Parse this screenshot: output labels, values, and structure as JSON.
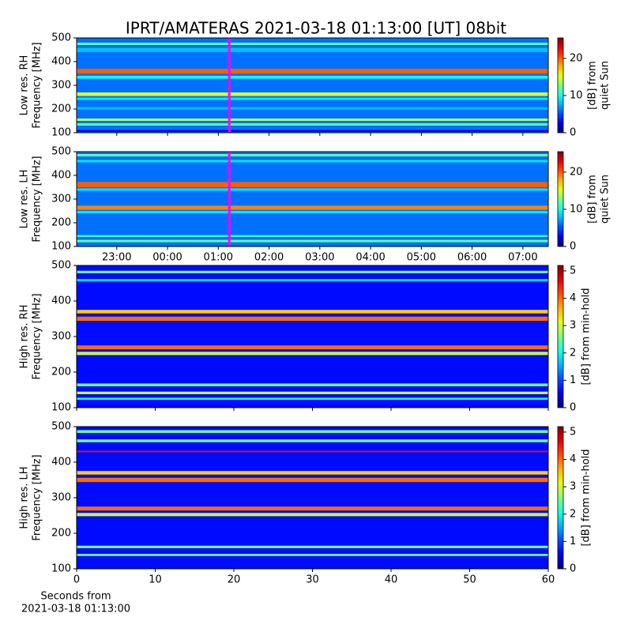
{
  "chart_data": [
    {
      "type": "heatmap",
      "title": "IPRT/AMATERAS 2021-03-18 01:13:00 [UT]   08bit",
      "ylabel": [
        "Low res. RH",
        "Frequency [MHz]"
      ],
      "ylim": [
        100,
        500
      ],
      "yticks": [
        100,
        200,
        300,
        400,
        500
      ],
      "xlim": [
        -1.79,
        7.5
      ],
      "markers": [
        {
          "x": 1.2167,
          "color": "#ff00ff"
        }
      ],
      "clim": [
        0,
        25.5
      ],
      "cticks": [
        0,
        10,
        20
      ],
      "clabel": [
        "[dB] from",
        "quiet Sun"
      ],
      "background": 6,
      "bands": [
        {
          "from": 470,
          "to": 480,
          "value": 12
        },
        {
          "from": 440,
          "to": 458,
          "value": 8
        },
        {
          "from": 350,
          "to": 370,
          "value": 20
        },
        {
          "from": 328,
          "to": 340,
          "value": 10
        },
        {
          "from": 255,
          "to": 270,
          "value": 15
        },
        {
          "from": 238,
          "to": 248,
          "value": 9
        },
        {
          "from": 198,
          "to": 208,
          "value": 8
        },
        {
          "from": 150,
          "to": 160,
          "value": 14
        },
        {
          "from": 130,
          "to": 140,
          "value": 12
        },
        {
          "from": 104,
          "to": 112,
          "value": 3
        }
      ]
    },
    {
      "type": "heatmap",
      "ylabel": [
        "Low res. LH",
        "Frequency [MHz]"
      ],
      "ylim": [
        100,
        500
      ],
      "yticks": [
        100,
        200,
        300,
        400,
        500
      ],
      "xlim": [
        -1.79,
        7.5
      ],
      "markers": [
        {
          "x": 1.2167,
          "color": "#ff00ff"
        }
      ],
      "xticks": [
        {
          "value": -1,
          "label": "23:00"
        },
        {
          "value": 0,
          "label": "00:00"
        },
        {
          "value": 1,
          "label": "01:00"
        },
        {
          "value": 2,
          "label": "02:00"
        },
        {
          "value": 3,
          "label": "03:00"
        },
        {
          "value": 4,
          "label": "04:00"
        },
        {
          "value": 5,
          "label": "05:00"
        },
        {
          "value": 6,
          "label": "06:00"
        },
        {
          "value": 7,
          "label": "07:00"
        }
      ],
      "clim": [
        0,
        25.5
      ],
      "cticks": [
        0,
        10,
        20
      ],
      "clabel": [
        "[dB] from",
        "quiet Sun"
      ],
      "background": 6,
      "bands": [
        {
          "from": 480,
          "to": 490,
          "value": 12
        },
        {
          "from": 455,
          "to": 465,
          "value": 9
        },
        {
          "from": 350,
          "to": 372,
          "value": 20
        },
        {
          "from": 335,
          "to": 345,
          "value": 9
        },
        {
          "from": 255,
          "to": 272,
          "value": 19
        },
        {
          "from": 240,
          "to": 250,
          "value": 9
        },
        {
          "from": 140,
          "to": 148,
          "value": 11
        },
        {
          "from": 118,
          "to": 128,
          "value": 12
        }
      ]
    },
    {
      "type": "heatmap",
      "ylabel": [
        "High res. RH",
        "Frequency [MHz]"
      ],
      "ylim": [
        100,
        500
      ],
      "yticks": [
        100,
        200,
        300,
        400,
        500
      ],
      "xlim": [
        0,
        60
      ],
      "clim": [
        0,
        5.2
      ],
      "cticks": [
        0,
        1,
        2,
        3,
        4,
        5
      ],
      "clabel": [
        "[dB] from min-hold"
      ],
      "background": 0.7,
      "bands": [
        {
          "from": 478,
          "to": 485,
          "value": 2.5
        },
        {
          "from": 455,
          "to": 462,
          "value": 1.8
        },
        {
          "from": 365,
          "to": 375,
          "value": 3.5
        },
        {
          "from": 344,
          "to": 356,
          "value": 4
        },
        {
          "from": 264,
          "to": 275,
          "value": 4
        },
        {
          "from": 248,
          "to": 257,
          "value": 3
        },
        {
          "from": 160,
          "to": 168,
          "value": 2.5
        },
        {
          "from": 138,
          "to": 145,
          "value": 3
        },
        {
          "from": 122,
          "to": 128,
          "value": 2
        }
      ]
    },
    {
      "type": "heatmap",
      "ylabel": [
        "High res. LH",
        "Frequency [MHz]"
      ],
      "ylim": [
        100,
        500
      ],
      "yticks": [
        100,
        200,
        300,
        400,
        500
      ],
      "xlim": [
        0,
        60
      ],
      "xticks": [
        0,
        10,
        20,
        30,
        40,
        50,
        60
      ],
      "xlabel": [
        "Seconds from",
        "2021-03-18 01:13:00"
      ],
      "clim": [
        0,
        5.2
      ],
      "cticks": [
        0,
        1,
        2,
        3,
        4,
        5
      ],
      "clabel": [
        "[dB] from min-hold"
      ],
      "background": 0.7,
      "bands": [
        {
          "from": 482,
          "to": 490,
          "value": 2.5
        },
        {
          "from": 456,
          "to": 464,
          "value": 2.5
        },
        {
          "from": 428,
          "to": 432,
          "value": 4.5
        },
        {
          "from": 365,
          "to": 375,
          "value": 3.5
        },
        {
          "from": 344,
          "to": 356,
          "value": 4
        },
        {
          "from": 264,
          "to": 275,
          "value": 4
        },
        {
          "from": 248,
          "to": 257,
          "value": 3
        },
        {
          "from": 158,
          "to": 165,
          "value": 2.5
        },
        {
          "from": 136,
          "to": 142,
          "value": 2.5
        }
      ]
    }
  ]
}
